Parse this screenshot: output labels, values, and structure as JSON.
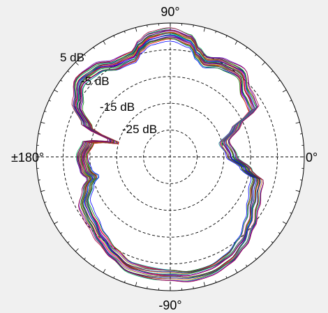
{
  "chart_data": {
    "type": "polar-line",
    "title": "",
    "angle_labels": [
      {
        "angle_deg": 90,
        "text": "90°"
      },
      {
        "angle_deg": 0,
        "text": "0°"
      },
      {
        "angle_deg": -90,
        "text": "-90°"
      },
      {
        "angle_deg": 180,
        "text": "±180°"
      }
    ],
    "radial_rings_db": [
      -25,
      -15,
      -5,
      5
    ],
    "radial_labels": [
      "-25 dB",
      "-15 dB",
      "-5 dB",
      "5 dB"
    ],
    "r_min_db": -35,
    "r_max_db": 15,
    "grid": true,
    "colors": [
      "#0000ff",
      "#008000",
      "#ff0000",
      "#00a0a0",
      "#c000c0",
      "#808000",
      "#404040",
      "#000080",
      "#c06000",
      "#00c060",
      "#6000c0",
      "#a00040"
    ],
    "series_count": 24,
    "envelope": {
      "angle_deg": [
        0,
        15,
        25,
        30,
        40,
        50,
        60,
        70,
        75,
        80,
        90,
        100,
        105,
        110,
        120,
        130,
        140,
        150,
        160,
        165,
        170,
        180,
        190,
        195,
        200,
        210,
        220,
        230,
        240,
        250,
        260,
        270,
        280,
        290,
        300,
        310,
        320,
        330,
        340,
        345,
        350,
        360
      ],
      "r_db": [
        -12,
        -14,
        -8,
        1,
        2,
        6,
        5,
        3,
        5,
        9,
        11,
        10,
        8,
        5,
        5,
        8,
        9,
        5,
        -2,
        -14,
        -4,
        -2,
        -3,
        -5,
        -2,
        2,
        3,
        5,
        7,
        9,
        9,
        9,
        10,
        10,
        9,
        7,
        4,
        1,
        -1,
        -1,
        -6,
        -12
      ]
    }
  }
}
